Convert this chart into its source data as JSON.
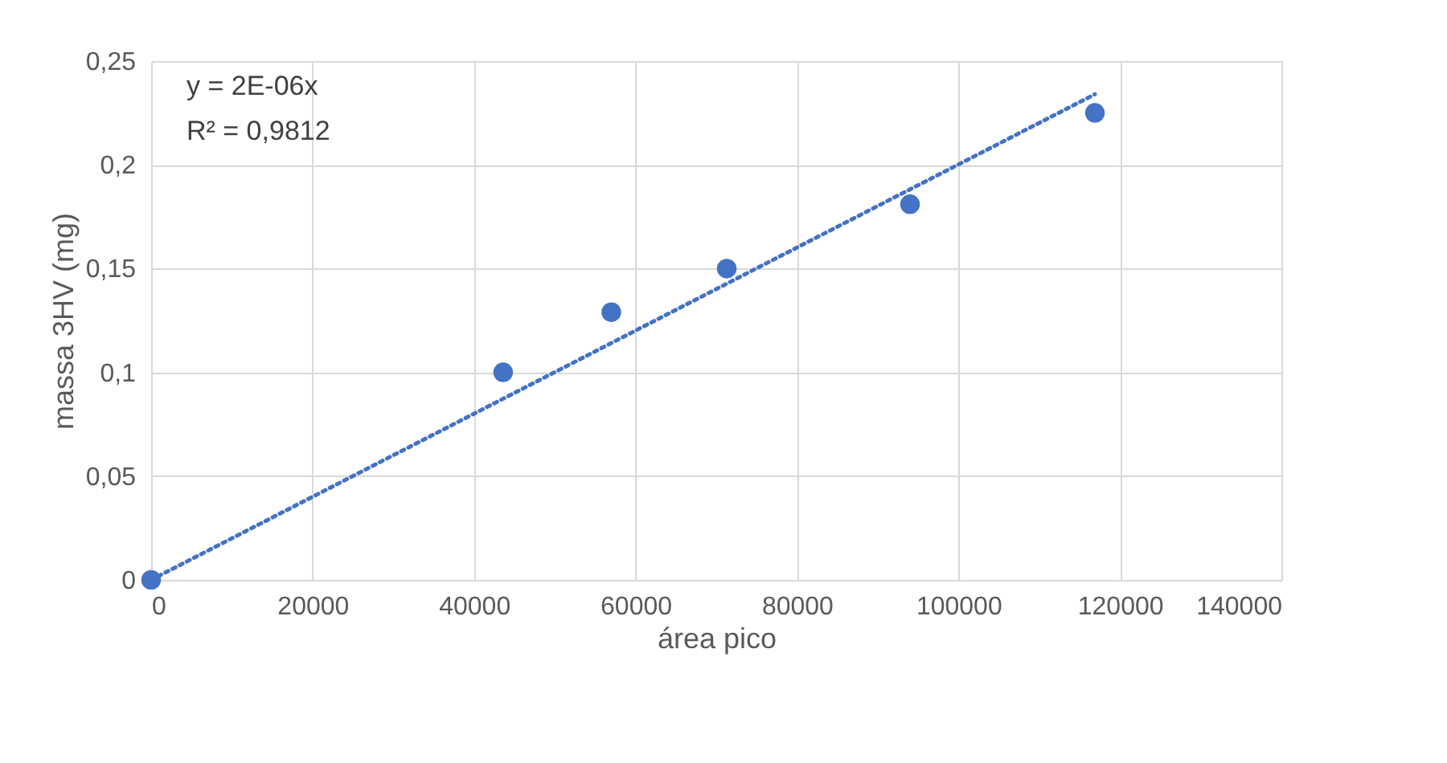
{
  "chart_data": {
    "type": "scatter",
    "xlabel": "área pico",
    "ylabel": "massa 3HV (mg)",
    "annotations": [
      "y = 2E-06x",
      "R² = 0,9812"
    ],
    "series": [
      {
        "color": "#4472c4",
        "x": [
          0,
          43600,
          57000,
          71300,
          94000,
          116900
        ],
        "values": [
          0,
          0.1,
          0.129,
          0.15,
          0.181,
          0.225
        ],
        "marker": "circle"
      },
      {
        "type": "line",
        "color": "#4472c4",
        "x": [
          0,
          116900
        ],
        "values": [
          0,
          0.234
        ],
        "line_style": "dotted"
      }
    ],
    "xlim": [
      0,
      140000
    ],
    "xticks": [
      0,
      20000,
      40000,
      60000,
      80000,
      100000,
      120000,
      140000
    ],
    "ylim": [
      0,
      0.25
    ],
    "yticks": [
      {
        "value": 0,
        "label": "0"
      },
      {
        "value": 0.05,
        "label": "0,05"
      },
      {
        "value": 0.1,
        "label": "0,1"
      },
      {
        "value": 0.15,
        "label": "0,15"
      },
      {
        "value": 0.2,
        "label": "0,2"
      },
      {
        "value": 0.25,
        "label": "0,25"
      }
    ],
    "grid": true
  }
}
